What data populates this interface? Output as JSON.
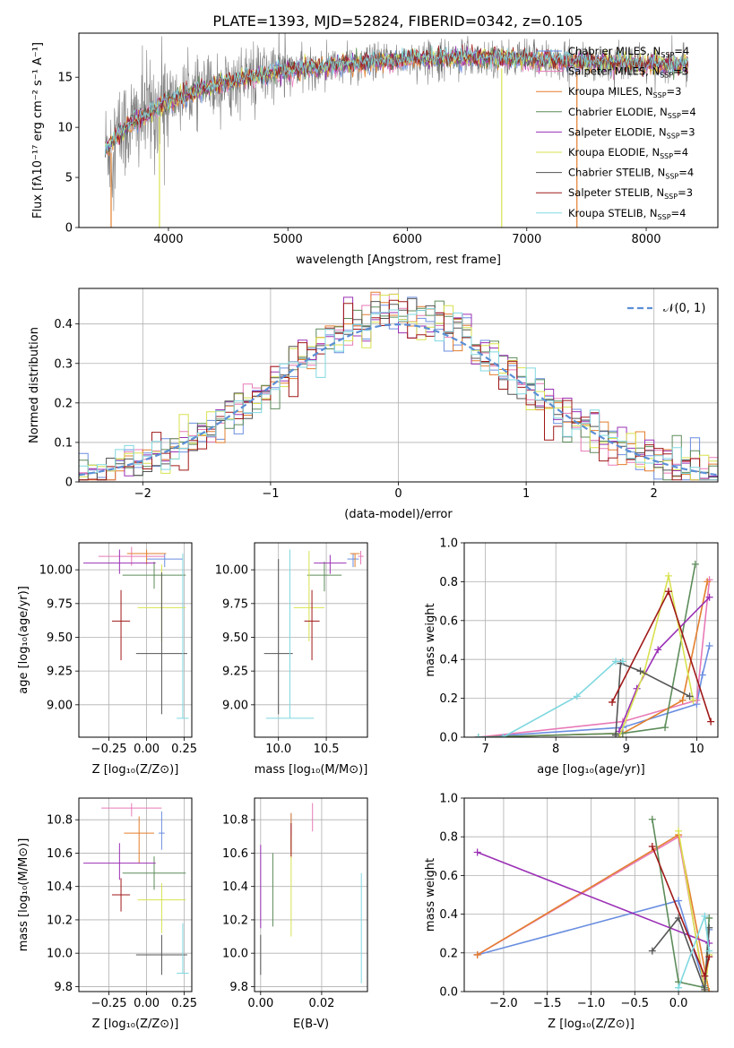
{
  "title": "PLATE=1393, MJD=52824, FIBERID=0342, z=0.105",
  "colors": [
    "#6a8ee0",
    "#e87ab7",
    "#e37f2e",
    "#5d8c5a",
    "#9b30b5",
    "#d8e24f",
    "#555555",
    "#a01818",
    "#80d8e0"
  ],
  "chart_data": [
    {
      "type": "line",
      "id": "spectrum",
      "xlabel": "wavelength [Angstrom, rest frame]",
      "ylabel": "Flux [fλ10⁻¹⁷ erg cm⁻² s⁻¹ A⁻¹]",
      "xlim": [
        3250,
        8600
      ],
      "ylim": [
        0,
        19.4
      ],
      "xticks": [
        4000,
        5000,
        6000,
        7000,
        8000
      ],
      "yticks": [
        0,
        5,
        10,
        15
      ],
      "grid": false,
      "legend_position": "right",
      "series": [
        {
          "name": "Chabrier MILES, N_SSP=4",
          "color": "#6a8ee0"
        },
        {
          "name": "Salpeter MILES, N_SSP=3",
          "color": "#e87ab7"
        },
        {
          "name": "Kroupa MILES, N_SSP=3",
          "color": "#e37f2e"
        },
        {
          "name": "Chabrier ELODIE, N_SSP=4",
          "color": "#5d8c5a"
        },
        {
          "name": "Salpeter ELODIE, N_SSP=3",
          "color": "#9b30b5"
        },
        {
          "name": "Kroupa ELODIE, N_SSP=4",
          "color": "#d8e24f"
        },
        {
          "name": "Chabrier STELIB, N_SSP=4",
          "color": "#555555"
        },
        {
          "name": "Salpeter STELIB, N_SSP=3",
          "color": "#a01818"
        },
        {
          "name": "Kroupa STELIB, N_SSP=4",
          "color": "#80d8e0"
        }
      ],
      "observed": {
        "color": "#808080"
      },
      "continuum": {
        "x": [
          3470,
          3600,
          3800,
          4000,
          4200,
          4500,
          4800,
          5200,
          5600,
          6000,
          6500,
          7000,
          7500,
          8000,
          8350
        ],
        "y": [
          7.8,
          9.5,
          11.2,
          12.6,
          13.5,
          14.5,
          15.3,
          15.9,
          16.4,
          16.8,
          17.0,
          16.8,
          16.5,
          16.3,
          16.1
        ]
      },
      "dips": [
        {
          "x": 3520,
          "y": 0
        },
        {
          "x": 3925,
          "y": 0
        },
        {
          "x": 6790,
          "y": 0
        },
        {
          "x": 7420,
          "y": 0
        }
      ]
    },
    {
      "type": "step",
      "id": "residuals",
      "xlabel": "(data-model)/error",
      "ylabel": "Normed distribution",
      "xlim": [
        -2.5,
        2.5
      ],
      "ylim": [
        0,
        0.49
      ],
      "xticks": [
        -2,
        -1,
        0,
        1,
        2
      ],
      "yticks": [
        0.0,
        0.1,
        0.2,
        0.3,
        0.4
      ],
      "grid": true,
      "legend": "𝒩(0, 1)",
      "legend_position": "top-right",
      "normal_color": "#5b8fd6"
    },
    {
      "type": "errorbar",
      "id": "age-vs-z",
      "xlabel": "Z [log₁₀(Z/Z⊙)]",
      "ylabel": "age  [log₁₀(age/yr)]",
      "xlim": [
        -0.45,
        0.3
      ],
      "ylim": [
        8.76,
        10.2
      ],
      "xticks": [
        -0.25,
        0.0,
        0.25
      ],
      "xticklabels": [
        "−0.25",
        "0.00",
        "0.25"
      ],
      "yticks": [
        9.0,
        9.25,
        9.5,
        9.75,
        10.0
      ],
      "yticklabels": [
        "9.00",
        "9.25",
        "9.50",
        "9.75",
        "10.00"
      ],
      "grid": true,
      "points": [
        {
          "s": 0,
          "x": 0.12,
          "y": 10.08,
          "xe": 0.12,
          "yel": 0.06,
          "yeh": 0.04
        },
        {
          "s": 1,
          "x": -0.1,
          "y": 10.1,
          "xe": 0.22,
          "yel": 0.07,
          "yeh": 0.07
        },
        {
          "s": 2,
          "x": 0.0,
          "y": 10.12,
          "xe": 0.13,
          "yel": 0.08,
          "yeh": 0.03
        },
        {
          "s": 3,
          "x": 0.05,
          "y": 9.96,
          "xe": 0.21,
          "yel": 0.1,
          "yeh": 0.1
        },
        {
          "s": 4,
          "x": -0.18,
          "y": 10.05,
          "xe": 0.24,
          "yel": 0.08,
          "yeh": 0.1
        },
        {
          "s": 5,
          "x": 0.1,
          "y": 9.72,
          "xe": 0.16,
          "yel": 0.25,
          "yeh": 0.32
        },
        {
          "s": 6,
          "x": 0.1,
          "y": 9.38,
          "xe": 0.17,
          "yel": 0.45,
          "yeh": 0.6
        },
        {
          "s": 7,
          "x": -0.17,
          "y": 9.62,
          "xe": 0.06,
          "yel": 0.29,
          "yeh": 0.23
        },
        {
          "s": 8,
          "x": 0.24,
          "y": 8.9,
          "xe": 0.04,
          "yel": 0.0,
          "yeh": 1.22
        }
      ]
    },
    {
      "type": "errorbar",
      "id": "age-vs-mass",
      "xlabel": "mass [log₁₀(M/M⊙)]",
      "ylabel": "",
      "xlim": [
        9.75,
        10.93
      ],
      "ylim": [
        8.76,
        10.2
      ],
      "xticks": [
        10.0,
        10.5
      ],
      "xticklabels": [
        "10.0",
        "10.5"
      ],
      "yticks": [
        9.0,
        9.25,
        9.5,
        9.75,
        10.0
      ],
      "yticklabels": [
        "9.00",
        "9.25",
        "9.50",
        "9.75",
        "10.00"
      ],
      "grid": true,
      "points": [
        {
          "s": 0,
          "x": 10.78,
          "y": 10.08,
          "xe": 0.06,
          "yel": 0.06,
          "yeh": 0.04
        },
        {
          "s": 1,
          "x": 10.86,
          "y": 10.1,
          "xe": 0.03,
          "yel": 0.06,
          "yeh": 0.04
        },
        {
          "s": 2,
          "x": 10.8,
          "y": 10.12,
          "xe": 0.05,
          "yel": 0.1,
          "yeh": 0.0
        },
        {
          "s": 3,
          "x": 10.48,
          "y": 9.96,
          "xe": 0.18,
          "yel": 0.12,
          "yeh": 0.1
        },
        {
          "s": 4,
          "x": 10.54,
          "y": 10.05,
          "xe": 0.17,
          "yel": 0.08,
          "yeh": 0.06
        },
        {
          "s": 5,
          "x": 10.32,
          "y": 9.72,
          "xe": 0.16,
          "yel": 0.25,
          "yeh": 0.42
        },
        {
          "s": 6,
          "x": 10.0,
          "y": 9.38,
          "xe": 0.15,
          "yel": 0.45,
          "yeh": 0.7
        },
        {
          "s": 7,
          "x": 10.35,
          "y": 9.62,
          "xe": 0.08,
          "yel": 0.29,
          "yeh": 0.23
        },
        {
          "s": 8,
          "x": 10.12,
          "y": 8.9,
          "xe": 0.25,
          "yel": 0.0,
          "yeh": 1.25
        }
      ]
    },
    {
      "type": "line",
      "id": "mass-weight-vs-age",
      "xlabel": "age  [log₁₀(age/yr)]",
      "ylabel": "mass weight",
      "xlim": [
        6.7,
        10.3
      ],
      "ylim": [
        0.0,
        1.0
      ],
      "xticks": [
        7,
        8,
        9,
        10
      ],
      "yticks": [
        0.0,
        0.2,
        0.4,
        0.6,
        0.8,
        1.0
      ],
      "yticklabels": [
        "0.0",
        "0.2",
        "0.4",
        "0.6",
        "0.8",
        "1.0"
      ],
      "grid": true,
      "series": [
        {
          "s": 0,
          "x": [
            6.9,
            8.95,
            10.0,
            10.08,
            10.18
          ],
          "y": [
            0.0,
            0.05,
            0.17,
            0.32,
            0.47
          ]
        },
        {
          "s": 1,
          "x": [
            6.9,
            8.95,
            10.0,
            10.18
          ],
          "y": [
            0.0,
            0.08,
            0.19,
            0.81
          ]
        },
        {
          "s": 2,
          "x": [
            6.9,
            8.95,
            9.8,
            10.15
          ],
          "y": [
            0.0,
            0.02,
            0.19,
            0.8
          ]
        },
        {
          "s": 3,
          "x": [
            6.9,
            8.95,
            9.55,
            9.98
          ],
          "y": [
            0.0,
            0.02,
            0.05,
            0.89
          ]
        },
        {
          "s": 4,
          "x": [
            8.9,
            9.15,
            9.45,
            10.18
          ],
          "y": [
            0.03,
            0.25,
            0.45,
            0.72
          ]
        },
        {
          "s": 5,
          "x": [
            8.9,
            9.25,
            9.6,
            9.95
          ],
          "y": [
            0.0,
            0.33,
            0.83,
            0.19
          ]
        },
        {
          "s": 6,
          "x": [
            8.85,
            8.92,
            9.2,
            9.9
          ],
          "y": [
            0.01,
            0.38,
            0.34,
            0.21
          ]
        },
        {
          "s": 7,
          "x": [
            8.8,
            9.6,
            10.2
          ],
          "y": [
            0.18,
            0.75,
            0.08
          ]
        },
        {
          "s": 8,
          "x": [
            6.9,
            7.25,
            8.3,
            8.85,
            8.95
          ],
          "y": [
            0.0,
            0.0,
            0.21,
            0.39,
            0.39
          ]
        }
      ]
    },
    {
      "type": "errorbar",
      "id": "mass-vs-z",
      "xlabel": "Z [log₁₀(Z/Z⊙)]",
      "ylabel": "mass [log₁₀(M/M⊙)]",
      "xlim": [
        -0.45,
        0.3
      ],
      "ylim": [
        9.77,
        10.93
      ],
      "xticks": [
        -0.25,
        0.0,
        0.25
      ],
      "xticklabels": [
        "−0.25",
        "0.00",
        "0.25"
      ],
      "yticks": [
        9.8,
        10.0,
        10.2,
        10.4,
        10.6,
        10.8
      ],
      "yticklabels": [
        "9.8",
        "10.0",
        "10.2",
        "10.4",
        "10.6",
        "10.8"
      ],
      "grid": true,
      "points": [
        {
          "s": 0,
          "x": 0.1,
          "y": 10.72,
          "xe": 0.02,
          "yel": 0.1,
          "yeh": 0.13
        },
        {
          "s": 1,
          "x": -0.1,
          "y": 10.87,
          "xe": 0.2,
          "yel": 0.05,
          "yeh": 0.03
        },
        {
          "s": 2,
          "x": -0.05,
          "y": 10.72,
          "xe": 0.1,
          "yel": 0.18,
          "yeh": 0.1
        },
        {
          "s": 3,
          "x": 0.05,
          "y": 10.48,
          "xe": 0.21,
          "yel": 0.1,
          "yeh": 0.1
        },
        {
          "s": 4,
          "x": -0.18,
          "y": 10.54,
          "xe": 0.24,
          "yel": 0.1,
          "yeh": 0.12
        },
        {
          "s": 5,
          "x": 0.1,
          "y": 10.32,
          "xe": 0.16,
          "yel": 0.2,
          "yeh": 0.1
        },
        {
          "s": 6,
          "x": 0.1,
          "y": 9.99,
          "xe": 0.17,
          "yel": 0.12,
          "yeh": 0.12
        },
        {
          "s": 7,
          "x": -0.17,
          "y": 10.35,
          "xe": 0.06,
          "yel": 0.1,
          "yeh": 0.1
        },
        {
          "s": 8,
          "x": 0.24,
          "y": 9.88,
          "xe": 0.04,
          "yel": 0.0,
          "yeh": 0.3
        }
      ]
    },
    {
      "type": "errorbar",
      "id": "mass-vs-ebv",
      "xlabel": "E(B-V)",
      "ylabel": "",
      "xlim": [
        -0.002,
        0.035
      ],
      "ylim": [
        9.77,
        10.93
      ],
      "xticks": [
        0.0,
        0.02
      ],
      "xticklabels": [
        "0.00",
        "0.02"
      ],
      "yticks": [
        9.8,
        10.0,
        10.2,
        10.4,
        10.6,
        10.8
      ],
      "yticklabels": [
        "9.8",
        "10.0",
        "10.2",
        "10.4",
        "10.6",
        "10.8"
      ],
      "grid": true,
      "points": [
        {
          "s": 0,
          "x": 0.01,
          "y": 10.72,
          "xe": 0,
          "yel": 0.1,
          "yeh": 0.12
        },
        {
          "s": 1,
          "x": 0.017,
          "y": 10.8,
          "xe": 0,
          "yel": 0.07,
          "yeh": 0.1
        },
        {
          "s": 2,
          "x": 0.01,
          "y": 10.72,
          "xe": 0,
          "yel": 0.15,
          "yeh": 0.12
        },
        {
          "s": 3,
          "x": 0.004,
          "y": 10.38,
          "xe": 0,
          "yel": 0.22,
          "yeh": 0.22
        },
        {
          "s": 4,
          "x": 0.0,
          "y": 10.35,
          "xe": 0,
          "yel": 0.2,
          "yeh": 0.3
        },
        {
          "s": 5,
          "x": 0.01,
          "y": 10.4,
          "xe": 0,
          "yel": 0.3,
          "yeh": 0.3
        },
        {
          "s": 6,
          "x": 0.0,
          "y": 9.99,
          "xe": 0,
          "yel": 0.12,
          "yeh": 0.12
        },
        {
          "s": 7,
          "x": 0.01,
          "y": 10.68,
          "xe": 0,
          "yel": 0.1,
          "yeh": 0.1
        },
        {
          "s": 8,
          "x": 0.033,
          "y": 10.15,
          "xe": 0,
          "yel": 0.33,
          "yeh": 0.33
        }
      ]
    },
    {
      "type": "line",
      "id": "mass-weight-vs-z",
      "xlabel": "Z [log₁₀(Z/Z⊙)]",
      "ylabel": "mass weight",
      "xlim": [
        -2.45,
        0.45
      ],
      "ylim": [
        0.0,
        1.0
      ],
      "xticks": [
        -2.0,
        -1.5,
        -1.0,
        -0.5,
        0.0
      ],
      "xticklabels": [
        "−2.0",
        "−1.5",
        "−1.0",
        "−0.5",
        "0.0"
      ],
      "yticks": [
        0.0,
        0.2,
        0.4,
        0.6,
        0.8,
        1.0
      ],
      "yticklabels": [
        "0.0",
        "0.2",
        "0.4",
        "0.6",
        "0.8",
        "1.0"
      ],
      "grid": true,
      "series": [
        {
          "s": 0,
          "x": [
            -2.3,
            0.0,
            0.3,
            0.35
          ],
          "y": [
            0.19,
            0.47,
            0.03,
            0.32
          ]
        },
        {
          "s": 1,
          "x": [
            -2.3,
            0.0,
            0.3
          ],
          "y": [
            0.19,
            0.8,
            0.02
          ]
        },
        {
          "s": 2,
          "x": [
            -2.3,
            0.0,
            0.35
          ],
          "y": [
            0.19,
            0.81,
            0.0
          ]
        },
        {
          "s": 3,
          "x": [
            -0.3,
            0.0,
            0.3,
            0.35
          ],
          "y": [
            0.89,
            0.05,
            0.02,
            0.38
          ]
        },
        {
          "s": 4,
          "x": [
            -2.3,
            0.35
          ],
          "y": [
            0.72,
            0.25
          ]
        },
        {
          "s": 5,
          "x": [
            0.0,
            0.3,
            0.35
          ],
          "y": [
            0.83,
            0.0,
            0.19
          ]
        },
        {
          "s": 6,
          "x": [
            -0.3,
            0.0,
            0.3,
            0.35
          ],
          "y": [
            0.21,
            0.38,
            0.01,
            0.33
          ]
        },
        {
          "s": 7,
          "x": [
            -0.3,
            0.3,
            0.35
          ],
          "y": [
            0.75,
            0.08,
            0.18
          ]
        },
        {
          "s": 8,
          "x": [
            0.0,
            0.3,
            0.35
          ],
          "y": [
            0.02,
            0.39,
            0.21
          ]
        }
      ]
    }
  ]
}
